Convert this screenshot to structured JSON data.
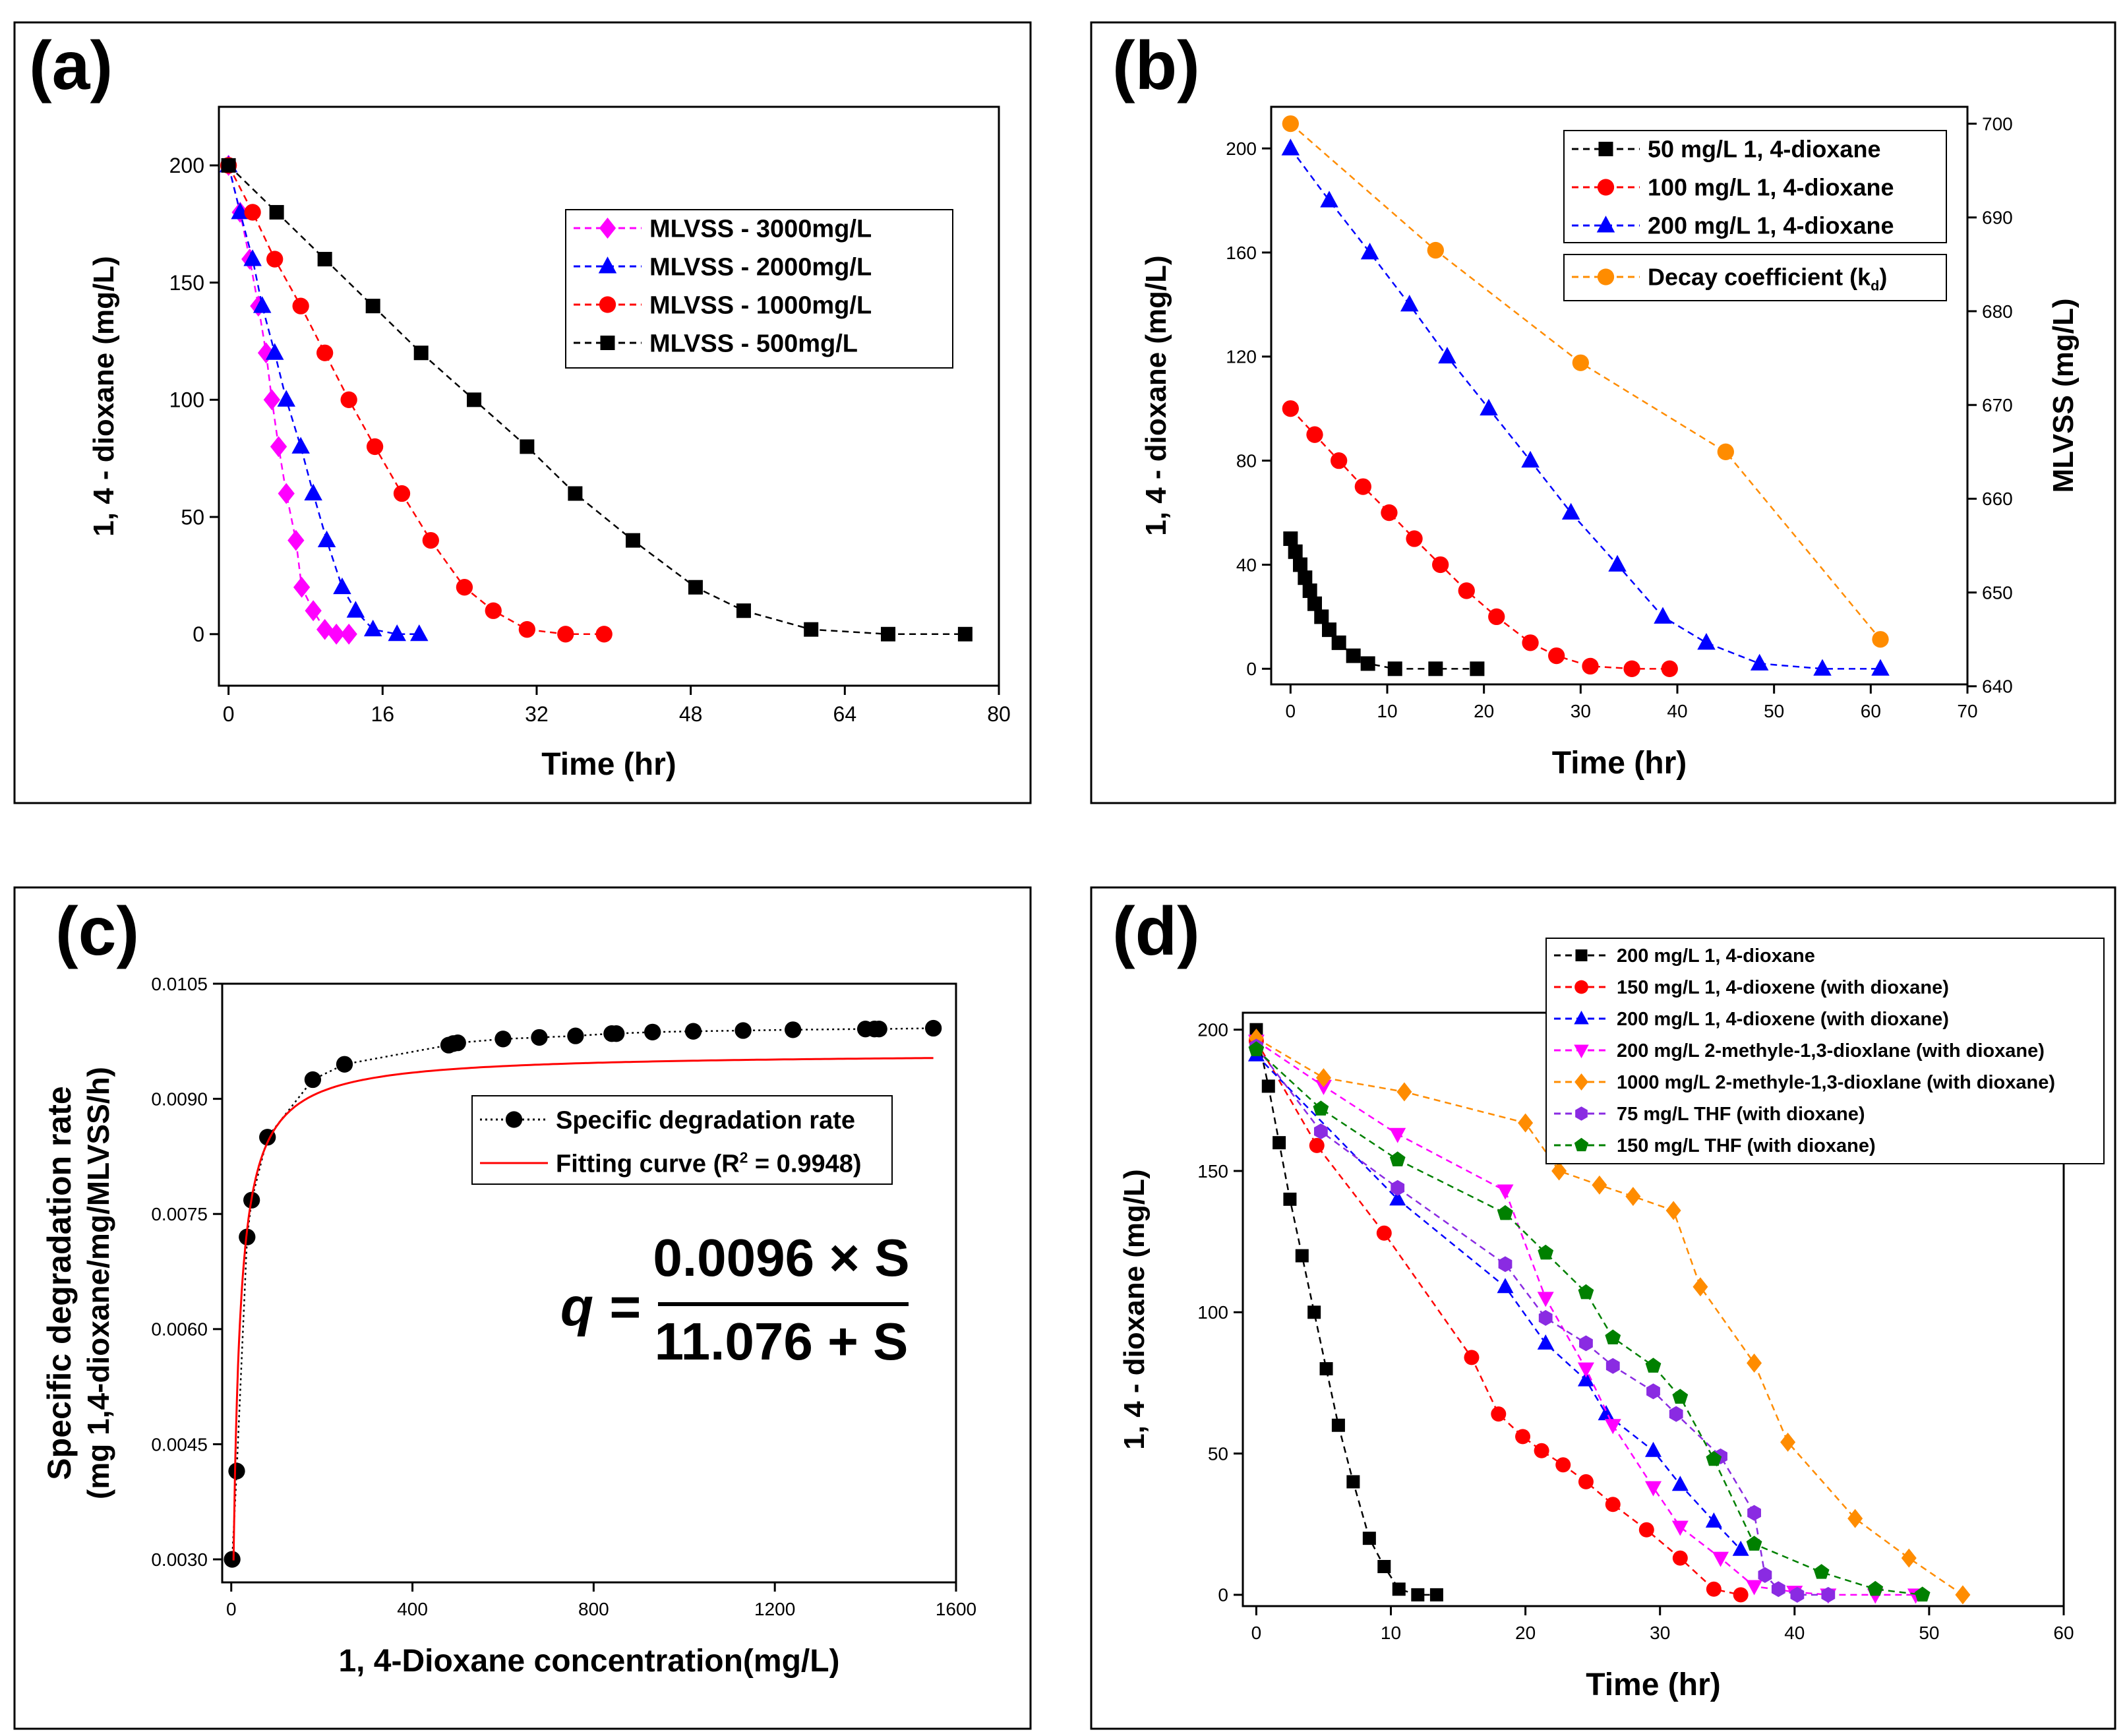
{
  "chart_data": [
    {
      "panel": "(a)",
      "type": "line",
      "title": "",
      "xlabel": "Time (hr)",
      "ylabel": "1, 4 - dioxane (mg/L)",
      "xlim": [
        -1,
        80
      ],
      "ylim": [
        -22,
        225
      ],
      "xticks": [
        0,
        16,
        32,
        48,
        64,
        80
      ],
      "yticks": [
        0,
        50,
        100,
        150,
        200
      ],
      "legend_position": "top-right",
      "series": [
        {
          "name": "MLVSS - 3000mg/L",
          "color": "#ff00ff",
          "marker": "diamond",
          "x": [
            0,
            1.2,
            2.2,
            3.1,
            3.9,
            4.5,
            5.2,
            6.0,
            7.0,
            7.6,
            8.8,
            10.0,
            11.2,
            12.5
          ],
          "y": [
            200,
            180,
            160,
            140,
            120,
            100,
            80,
            60,
            40,
            20,
            10,
            2,
            0,
            0
          ]
        },
        {
          "name": "MLVSS - 2000mg/L",
          "color": "#0000ff",
          "marker": "triangle",
          "x": [
            0,
            1.2,
            2.5,
            3.5,
            4.8,
            6.0,
            7.5,
            8.8,
            10.2,
            11.8,
            13.2,
            15.0,
            17.5,
            19.8
          ],
          "y": [
            200,
            180,
            160,
            140,
            120,
            100,
            80,
            60,
            40,
            20,
            10,
            2,
            0,
            0
          ]
        },
        {
          "name": "MLVSS - 1000mg/L",
          "color": "#ff0000",
          "marker": "circle",
          "x": [
            0,
            2.5,
            4.8,
            7.5,
            10.0,
            12.5,
            15.2,
            18.0,
            21.0,
            24.5,
            27.5,
            31.0,
            35.0,
            39.0
          ],
          "y": [
            200,
            180,
            160,
            140,
            120,
            100,
            80,
            60,
            40,
            20,
            10,
            2,
            0,
            0
          ]
        },
        {
          "name": "MLVSS - 500mg/L",
          "color": "#000000",
          "marker": "square",
          "x": [
            0,
            5.0,
            10.0,
            15.0,
            20.0,
            25.5,
            31.0,
            36.0,
            42.0,
            48.5,
            53.5,
            60.5,
            68.5,
            76.5
          ],
          "y": [
            200,
            180,
            160,
            140,
            120,
            100,
            80,
            60,
            40,
            20,
            10,
            2,
            0,
            0
          ]
        }
      ]
    },
    {
      "panel": "(b)",
      "type": "line",
      "title": "",
      "xlabel": "Time (hr)",
      "ylabel": "1, 4 - dioxane (mg/L)",
      "ylabel_right": "MLVSS (mg/L)",
      "xlim": [
        -2,
        70
      ],
      "ylim": [
        -6,
        216
      ],
      "ylim_right": [
        640.2,
        701.8
      ],
      "xticks": [
        0,
        10,
        20,
        30,
        40,
        50,
        60,
        70
      ],
      "yticks": [
        0,
        40,
        80,
        120,
        160,
        200
      ],
      "yticks_right": [
        640,
        650,
        660,
        670,
        680,
        690,
        700
      ],
      "legend_position": "top-right",
      "series": [
        {
          "name": "50 mg/L 1, 4-dioxane",
          "color": "#000000",
          "marker": "square",
          "axis": "left",
          "x": [
            0,
            0.5,
            1.0,
            1.5,
            2.0,
            2.5,
            3.2,
            4.0,
            5.0,
            6.5,
            8.0,
            10.8,
            15.0,
            19.3
          ],
          "y": [
            50,
            45,
            40,
            35,
            30,
            25,
            20,
            15,
            10,
            5,
            2,
            0,
            0,
            0
          ]
        },
        {
          "name": "100 mg/L 1, 4-dioxane",
          "color": "#ff0000",
          "marker": "circle",
          "axis": "left",
          "x": [
            0,
            2.5,
            5.0,
            7.5,
            10.2,
            12.8,
            15.5,
            18.2,
            21.3,
            24.8,
            27.5,
            31.0,
            35.3,
            39.2
          ],
          "y": [
            100,
            90,
            80,
            70,
            60,
            50,
            40,
            30,
            20,
            10,
            5,
            1,
            0,
            0
          ]
        },
        {
          "name": "200 mg/L 1, 4-dioxane",
          "color": "#0000ff",
          "marker": "triangle",
          "axis": "left",
          "x": [
            0,
            4.0,
            8.2,
            12.3,
            16.2,
            20.5,
            24.8,
            29.0,
            33.8,
            38.5,
            43.0,
            48.5,
            55.0,
            61.0
          ],
          "y": [
            200,
            180,
            160,
            140,
            120,
            100,
            80,
            60,
            40,
            20,
            10,
            2,
            0,
            0
          ]
        },
        {
          "name": "Decay coefficient (k",
          "name_subscript": "d",
          "name_suffix": ")",
          "color": "#ff8c00",
          "marker": "circle",
          "axis": "right",
          "x": [
            0,
            15,
            30,
            45,
            61
          ],
          "y": [
            700,
            686.5,
            674.5,
            665,
            645
          ]
        }
      ]
    },
    {
      "panel": "(c)",
      "type": "scatter",
      "title": "",
      "xlabel": "1, 4-Dioxane concentration(mg/L)",
      "ylabel_line1": "Specific degradation rate",
      "ylabel_line2": "(mg 1,4-dioxane/mg/MLVSS/h)",
      "xlim": [
        -20,
        1600
      ],
      "ylim": [
        0.0027,
        0.0105
      ],
      "xticks": [
        0,
        400,
        800,
        1200,
        1600
      ],
      "yticks": [
        "0.0030",
        "0.0045",
        "0.0060",
        "0.0075",
        "0.0090",
        "0.0105"
      ],
      "legend_position": "center-right",
      "series": [
        {
          "name": "Specific degradation rate",
          "color": "#000000",
          "marker": "circle",
          "line": "dotted",
          "x": [
            2,
            12,
            35,
            45,
            80,
            180,
            250,
            480,
            490,
            500,
            600,
            680,
            760,
            840,
            850,
            930,
            1020,
            1130,
            1240,
            1400,
            1420,
            1430,
            1550
          ],
          "y": [
            0.003,
            0.00415,
            0.0072,
            0.00768,
            0.0085,
            0.00925,
            0.00945,
            0.0097,
            0.00972,
            0.00973,
            0.00978,
            0.0098,
            0.00982,
            0.00985,
            0.00985,
            0.00987,
            0.00988,
            0.00989,
            0.0099,
            0.00991,
            0.00991,
            0.00991,
            0.00992
          ]
        },
        {
          "name": "Fitting curve (R",
          "name_superscript": "2",
          "name_suffix": " = 0.9948)",
          "color": "#ff0000",
          "line": "solid",
          "model": "q = 0.0096*S/(11.076+S)"
        }
      ],
      "equation": {
        "lhs": "q =",
        "numerator": "0.0096 × S",
        "denominator": "11.076 + S"
      }
    },
    {
      "panel": "(d)",
      "type": "line",
      "title": "",
      "xlabel": "Time (hr)",
      "ylabel": "1, 4 - dioxane (mg/L)",
      "xlim": [
        -1,
        60
      ],
      "ylim": [
        -4,
        206
      ],
      "xticks": [
        0,
        10,
        20,
        30,
        40,
        50,
        60
      ],
      "yticks": [
        0,
        50,
        100,
        150,
        200
      ],
      "legend_position": "top-right",
      "series": [
        {
          "name": "200 mg/L 1, 4-dioxane",
          "color": "#000000",
          "marker": "square",
          "x": [
            0,
            0.9,
            1.7,
            2.5,
            3.4,
            4.3,
            5.2,
            6.1,
            7.2,
            8.4,
            9.5,
            10.6,
            12.0,
            13.4
          ],
          "y": [
            200,
            180,
            160,
            140,
            120,
            100,
            80,
            60,
            40,
            20,
            10,
            2,
            0,
            0
          ]
        },
        {
          "name": "150 mg/L 1, 4-dioxene (with dioxane)",
          "color": "#ff0000",
          "marker": "circle",
          "x": [
            0,
            4.5,
            9.5,
            16.0,
            18.0,
            19.8,
            21.2,
            22.8,
            24.5,
            26.5,
            29.0,
            31.5,
            34.0,
            36.0
          ],
          "y": [
            196,
            159,
            128,
            84,
            64,
            56,
            51,
            46,
            40,
            32,
            23,
            13,
            2,
            0
          ]
        },
        {
          "name": "200 mg/L 1, 4-dioxene (with dioxane)",
          "color": "#0000ff",
          "marker": "triangle",
          "x": [
            0,
            10.5,
            18.5,
            21.5,
            24.5,
            26.0,
            29.5,
            31.5,
            34.0,
            36.0
          ],
          "y": [
            191,
            140,
            109,
            89,
            76,
            64,
            51,
            39,
            26,
            16
          ]
        },
        {
          "name": "200 mg/L 2-methyle-1,3-dioxlane (with dioxane)",
          "color": "#ff00ff",
          "marker": "triangle-down",
          "x": [
            0,
            5.0,
            10.5,
            18.5,
            21.5,
            24.5,
            26.5,
            29.5,
            31.5,
            34.5,
            37.0,
            40.0,
            42.5,
            46.0,
            49.0
          ],
          "y": [
            196,
            180,
            163,
            143,
            105,
            80,
            60,
            38,
            24,
            13,
            3,
            1,
            0,
            0,
            0
          ]
        },
        {
          "name": "1000 mg/L 2-methyle-1,3-dioxlane (with dioxane)",
          "color": "#ff8c00",
          "marker": "diamond",
          "x": [
            0,
            5.0,
            11.0,
            20.0,
            22.5,
            25.5,
            28.0,
            31.0,
            33.0,
            37.0,
            39.5,
            44.5,
            48.5,
            52.5
          ],
          "y": [
            197,
            183,
            178,
            167,
            150,
            145,
            141,
            136,
            109,
            82,
            54,
            27,
            13,
            0
          ]
        },
        {
          "name": "75 mg/L THF (with dioxane)",
          "color": "#8a2be2",
          "marker": "hexagon",
          "x": [
            0,
            4.8,
            10.5,
            18.5,
            21.5,
            24.5,
            26.5,
            29.5,
            31.2,
            34.5,
            37.0,
            37.8,
            38.8,
            40.2,
            42.5
          ],
          "y": [
            194,
            164,
            144,
            117,
            98,
            89,
            81,
            72,
            64,
            49,
            29,
            7,
            2,
            0,
            0
          ]
        },
        {
          "name": "150 mg/L THF (with dioxane)",
          "color": "#008000",
          "marker": "pentagon",
          "x": [
            0,
            4.8,
            10.5,
            18.5,
            21.5,
            24.5,
            26.5,
            29.5,
            31.5,
            34.0,
            37.0,
            42.0,
            46.0,
            49.5
          ],
          "y": [
            193,
            172,
            154,
            135,
            121,
            107,
            91,
            81,
            70,
            48,
            18,
            8,
            2,
            0
          ]
        }
      ]
    }
  ]
}
